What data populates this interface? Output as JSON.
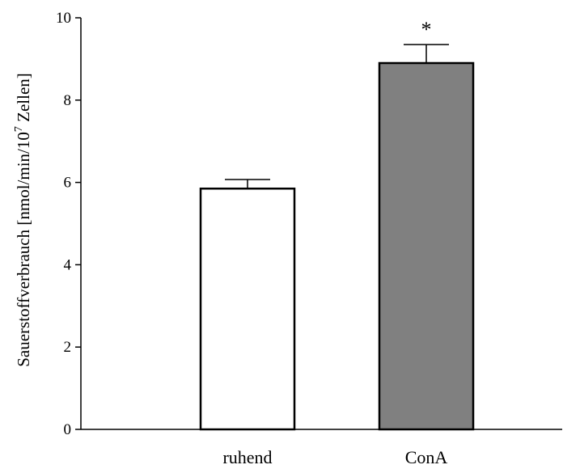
{
  "chart_data": {
    "type": "bar",
    "categories": [
      "ruhend",
      "ConA"
    ],
    "values": [
      5.85,
      8.9
    ],
    "errors": [
      0.22,
      0.45
    ],
    "annotations": [
      "",
      "*"
    ],
    "bar_colors": [
      "#ffffff",
      "#808080"
    ],
    "ylabel": {
      "main": "Sauerstoffverbrauch [nmol/min/10",
      "superscript": "7",
      "tail": " Zellen]"
    },
    "ylim": [
      0,
      10
    ],
    "yticks": [
      "0",
      "2",
      "4",
      "6",
      "8",
      "10"
    ],
    "grid": false,
    "legend": "none"
  }
}
